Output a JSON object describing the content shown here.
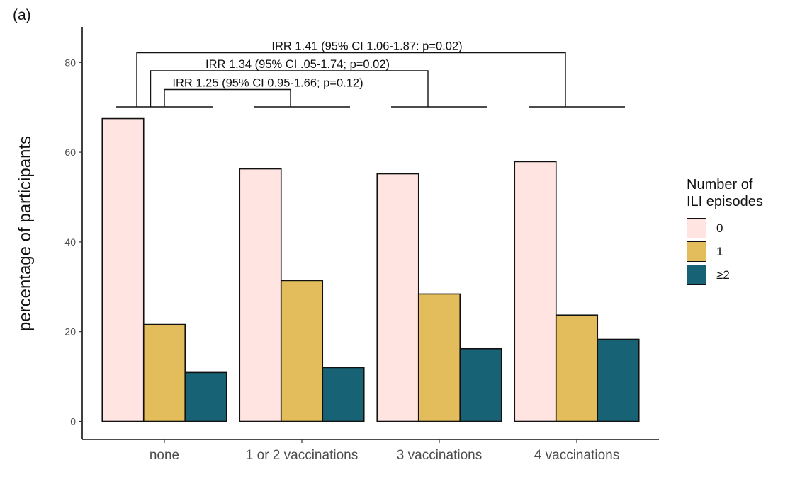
{
  "panel_label": "(a)",
  "chart_data": {
    "type": "bar",
    "title": "",
    "xlabel": "",
    "ylabel": "percentage of participants",
    "ylim": [
      0,
      88
    ],
    "yticks": [
      0,
      20,
      40,
      60,
      80
    ],
    "grid": false,
    "categories": [
      "none",
      "1 or 2 vaccinations",
      "3 vaccinations",
      "4 vaccinations"
    ],
    "legend": {
      "title_lines": [
        "Number of",
        "ILI episodes"
      ],
      "placement": "right"
    },
    "series": [
      {
        "name": "0",
        "color": "#FFE4E1",
        "values": [
          67.5,
          56.3,
          55.2,
          57.9
        ]
      },
      {
        "name": "1",
        "color": "#E3BC5C",
        "values": [
          21.6,
          31.4,
          28.4,
          23.7
        ]
      },
      {
        "name": "≥2",
        "color": "#176375",
        "values": [
          10.9,
          12.0,
          16.2,
          18.3
        ]
      }
    ],
    "annotations": [
      {
        "from": "none",
        "to": "1 or 2 vaccinations",
        "text": "IRR 1.25 (95% CI 0.95-1.66; p=0.12)"
      },
      {
        "from": "none",
        "to": "3 vaccinations",
        "text": "IRR 1.34 (95% CI .05-1.74; p=0.02)"
      },
      {
        "from": "none",
        "to": "4 vaccinations",
        "text": "IRR 1.41 (95% CI 1.06-1.87: p=0.02)"
      }
    ]
  }
}
